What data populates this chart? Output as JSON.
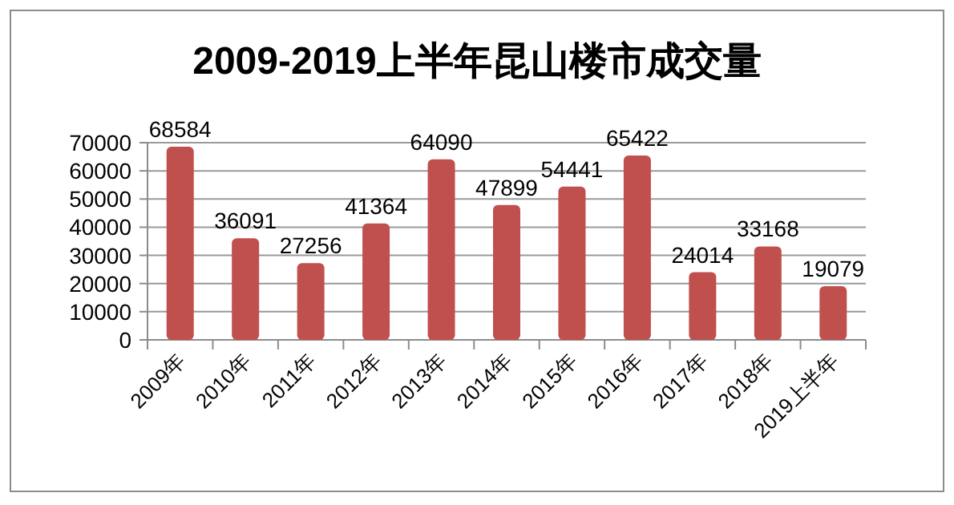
{
  "chart_data": {
    "type": "bar",
    "title": "2009-2019上半年昆山楼市成交量",
    "categories": [
      "2009年",
      "2010年",
      "2011年",
      "2012年",
      "2013年",
      "2014年",
      "2015年",
      "2016年",
      "2017年",
      "2018年",
      "2019上半年"
    ],
    "values": [
      68584,
      36091,
      27256,
      41364,
      64090,
      47899,
      54441,
      65422,
      24014,
      33168,
      19079
    ],
    "color": "#c0504d",
    "ylim": [
      0,
      70000
    ],
    "yticks": [
      0,
      10000,
      20000,
      30000,
      40000,
      50000,
      60000,
      70000
    ],
    "grid": "y",
    "data_labels": true
  }
}
